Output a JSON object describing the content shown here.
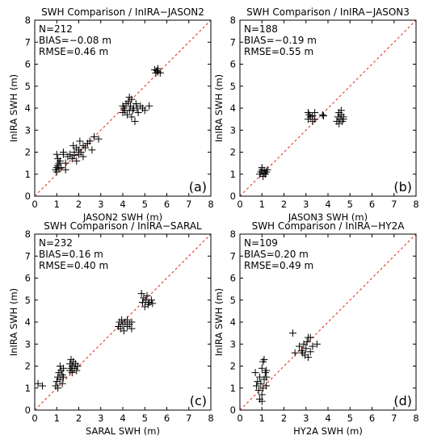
{
  "chart_data": [
    {
      "type": "scatter",
      "title": "SWH Comparison / InIRA−JASON2",
      "xlabel": "JASON2 SWH (m)",
      "ylabel": "InIRA SWH (m)",
      "xlim": [
        0,
        8
      ],
      "ylim": [
        0,
        8
      ],
      "xticks": [
        "0",
        "1",
        "2",
        "3",
        "4",
        "5",
        "6",
        "7",
        "8"
      ],
      "yticks": [
        "0",
        "1",
        "2",
        "3",
        "4",
        "5",
        "6",
        "7",
        "8"
      ],
      "stats": [
        "N=212",
        "BIAS=−0.08 m",
        "RMSE=0.46 m"
      ],
      "panel_label": "(a)",
      "reference_line": "1:1",
      "points": [
        [
          0.95,
          1.2
        ],
        [
          1.0,
          1.3
        ],
        [
          1.05,
          1.4
        ],
        [
          1.0,
          1.1
        ],
        [
          1.1,
          1.5
        ],
        [
          1.05,
          1.7
        ],
        [
          1.0,
          1.9
        ],
        [
          1.15,
          1.6
        ],
        [
          1.2,
          1.3
        ],
        [
          1.1,
          1.25
        ],
        [
          1.3,
          1.9
        ],
        [
          1.3,
          2.0
        ],
        [
          1.4,
          1.5
        ],
        [
          1.4,
          1.2
        ],
        [
          1.5,
          1.8
        ],
        [
          1.6,
          1.9
        ],
        [
          1.7,
          1.7
        ],
        [
          1.8,
          1.85
        ],
        [
          1.8,
          2.0
        ],
        [
          1.9,
          2.2
        ],
        [
          1.9,
          1.6
        ],
        [
          2.0,
          2.1
        ],
        [
          2.0,
          1.9
        ],
        [
          2.1,
          2.0
        ],
        [
          2.2,
          2.3
        ],
        [
          2.3,
          2.2
        ],
        [
          2.4,
          2.4
        ],
        [
          2.5,
          2.5
        ],
        [
          2.6,
          2.1
        ],
        [
          2.7,
          2.7
        ],
        [
          2.9,
          2.6
        ],
        [
          1.75,
          2.3
        ],
        [
          2.05,
          2.5
        ],
        [
          2.2,
          1.8
        ],
        [
          4.0,
          4.1
        ],
        [
          4.05,
          4.0
        ],
        [
          4.1,
          3.9
        ],
        [
          4.15,
          4.2
        ],
        [
          4.2,
          3.7
        ],
        [
          4.25,
          4.3
        ],
        [
          4.3,
          3.9
        ],
        [
          4.35,
          4.1
        ],
        [
          4.4,
          3.6
        ],
        [
          4.4,
          4.4
        ],
        [
          4.45,
          3.9
        ],
        [
          4.5,
          4.0
        ],
        [
          4.55,
          3.4
        ],
        [
          4.6,
          4.2
        ],
        [
          4.65,
          4.0
        ],
        [
          4.7,
          3.8
        ],
        [
          4.8,
          4.1
        ],
        [
          4.9,
          4.0
        ],
        [
          5.0,
          3.9
        ],
        [
          5.2,
          4.1
        ],
        [
          4.3,
          4.5
        ],
        [
          4.0,
          3.8
        ],
        [
          5.5,
          5.6
        ],
        [
          5.55,
          5.7
        ],
        [
          5.6,
          5.65
        ],
        [
          5.7,
          5.6
        ],
        [
          5.6,
          5.8
        ],
        [
          5.45,
          5.75
        ]
      ]
    },
    {
      "type": "scatter",
      "title": "SWH Comparison / InIRA−JASON3",
      "xlabel": "JASON3 SWH (m)",
      "ylabel": "InIRA SWH (m)",
      "xlim": [
        0,
        8
      ],
      "ylim": [
        0,
        8
      ],
      "xticks": [
        "0",
        "1",
        "2",
        "3",
        "4",
        "5",
        "6",
        "7",
        "8"
      ],
      "yticks": [
        "0",
        "1",
        "2",
        "3",
        "4",
        "5",
        "6",
        "7",
        "8"
      ],
      "stats": [
        "N=188",
        "BIAS=−0.19 m",
        "RMSE=0.55 m"
      ],
      "panel_label": "(b)",
      "reference_line": "1:1",
      "points": [
        [
          0.9,
          1.0
        ],
        [
          0.95,
          1.1
        ],
        [
          1.0,
          1.2
        ],
        [
          1.05,
          0.9
        ],
        [
          1.1,
          1.15
        ],
        [
          1.15,
          1.0
        ],
        [
          1.2,
          1.1
        ],
        [
          1.0,
          1.3
        ],
        [
          1.1,
          1.05
        ],
        [
          1.25,
          1.2
        ],
        [
          3.1,
          3.5
        ],
        [
          3.15,
          3.7
        ],
        [
          3.2,
          3.6
        ],
        [
          3.3,
          3.4
        ],
        [
          3.3,
          3.65
        ],
        [
          3.4,
          3.8
        ],
        [
          3.4,
          3.5
        ],
        [
          3.1,
          3.8
        ],
        [
          3.8,
          3.65
        ],
        [
          3.75,
          3.7
        ],
        [
          4.4,
          3.4
        ],
        [
          4.45,
          3.6
        ],
        [
          4.5,
          3.8
        ],
        [
          4.5,
          3.3
        ],
        [
          4.55,
          3.5
        ],
        [
          4.6,
          3.7
        ],
        [
          4.6,
          3.9
        ],
        [
          4.65,
          3.4
        ],
        [
          4.7,
          3.6
        ],
        [
          4.7,
          3.5
        ]
      ]
    },
    {
      "type": "scatter",
      "title": "SWH Comparison / InIRA−SARAL",
      "xlabel": "SARAL SWH (m)",
      "ylabel": "InIRA SWH (m)",
      "xlim": [
        0,
        8
      ],
      "ylim": [
        0,
        8
      ],
      "xticks": [
        "0",
        "1",
        "2",
        "3",
        "4",
        "5",
        "6",
        "7",
        "8"
      ],
      "yticks": [
        "0",
        "1",
        "2",
        "3",
        "4",
        "5",
        "6",
        "7",
        "8"
      ],
      "stats": [
        "N=232",
        "BIAS=0.16 m",
        "RMSE=0.40 m"
      ],
      "panel_label": "(c)",
      "reference_line": "1:1",
      "points": [
        [
          0.15,
          1.2
        ],
        [
          0.35,
          1.1
        ],
        [
          0.95,
          1.1
        ],
        [
          1.0,
          1.3
        ],
        [
          1.05,
          1.5
        ],
        [
          1.05,
          1.0
        ],
        [
          1.1,
          1.7
        ],
        [
          1.15,
          1.4
        ],
        [
          1.2,
          1.8
        ],
        [
          1.25,
          1.6
        ],
        [
          1.3,
          1.9
        ],
        [
          1.15,
          2.0
        ],
        [
          1.3,
          1.5
        ],
        [
          1.25,
          1.2
        ],
        [
          1.6,
          1.8
        ],
        [
          1.6,
          2.1
        ],
        [
          1.65,
          1.9
        ],
        [
          1.7,
          2.0
        ],
        [
          1.7,
          1.7
        ],
        [
          1.75,
          2.2
        ],
        [
          1.8,
          1.9
        ],
        [
          1.85,
          2.1
        ],
        [
          1.9,
          1.8
        ],
        [
          1.95,
          2.0
        ],
        [
          1.65,
          2.3
        ],
        [
          3.8,
          3.8
        ],
        [
          3.85,
          4.0
        ],
        [
          3.9,
          3.7
        ],
        [
          3.95,
          4.1
        ],
        [
          4.0,
          3.9
        ],
        [
          4.05,
          3.6
        ],
        [
          4.1,
          4.0
        ],
        [
          4.2,
          3.8
        ],
        [
          4.2,
          4.1
        ],
        [
          4.3,
          3.9
        ],
        [
          4.4,
          4.0
        ],
        [
          4.4,
          3.7
        ],
        [
          4.9,
          4.9
        ],
        [
          4.95,
          5.1
        ],
        [
          5.0,
          4.7
        ],
        [
          5.05,
          5.0
        ],
        [
          5.1,
          5.2
        ],
        [
          5.15,
          4.8
        ],
        [
          5.2,
          4.9
        ],
        [
          5.3,
          5.0
        ],
        [
          5.35,
          4.85
        ],
        [
          4.85,
          5.3
        ]
      ]
    },
    {
      "type": "scatter",
      "title": "SWH Comparison / InIRA−HY2A",
      "xlabel": "HY2A SWH (m)",
      "ylabel": "InIRA SWH (m)",
      "xlim": [
        0,
        8
      ],
      "ylim": [
        0,
        8
      ],
      "xticks": [
        "0",
        "1",
        "2",
        "3",
        "4",
        "5",
        "6",
        "7",
        "8"
      ],
      "yticks": [
        "0",
        "1",
        "2",
        "3",
        "4",
        "5",
        "6",
        "7",
        "8"
      ],
      "stats": [
        "N=109",
        "BIAS=0.20 m",
        "RMSE=0.49 m"
      ],
      "panel_label": "(d)",
      "reference_line": "1:1",
      "points": [
        [
          0.7,
          1.7
        ],
        [
          0.75,
          1.1
        ],
        [
          0.8,
          1.3
        ],
        [
          0.85,
          0.9
        ],
        [
          0.9,
          1.5
        ],
        [
          0.95,
          1.2
        ],
        [
          1.0,
          0.7
        ],
        [
          1.0,
          1.9
        ],
        [
          1.05,
          2.2
        ],
        [
          1.05,
          1.0
        ],
        [
          1.1,
          1.4
        ],
        [
          1.1,
          2.3
        ],
        [
          1.15,
          1.7
        ],
        [
          1.2,
          1.1
        ],
        [
          0.9,
          0.5
        ],
        [
          1.0,
          0.4
        ],
        [
          1.2,
          1.8
        ],
        [
          1.2,
          1.5
        ],
        [
          2.4,
          3.5
        ],
        [
          2.5,
          2.6
        ],
        [
          2.7,
          2.9
        ],
        [
          2.8,
          2.7
        ],
        [
          2.9,
          3.0
        ],
        [
          2.95,
          2.5
        ],
        [
          3.0,
          2.8
        ],
        [
          3.05,
          3.1
        ],
        [
          3.1,
          2.4
        ],
        [
          3.2,
          3.3
        ],
        [
          3.3,
          2.9
        ],
        [
          3.5,
          3.0
        ],
        [
          3.1,
          3.3
        ],
        [
          2.85,
          2.6
        ],
        [
          3.2,
          2.65
        ]
      ]
    }
  ]
}
